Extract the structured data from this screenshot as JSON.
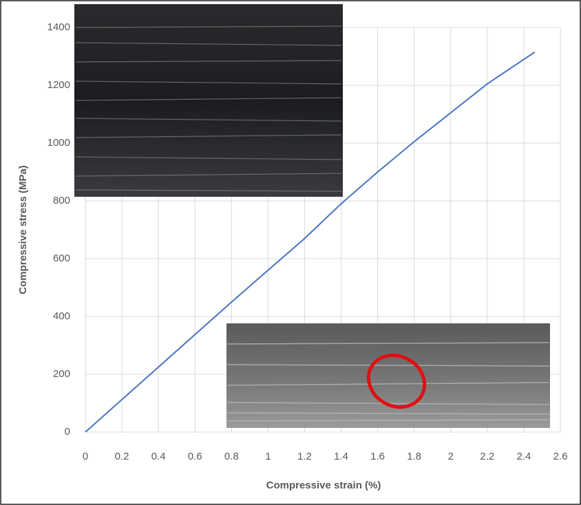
{
  "chart_data": {
    "type": "line",
    "x_label": "Compressive strain (%)",
    "y_label": "Compressive stress (MPa)",
    "x": [
      0,
      0.4,
      0.8,
      1.2,
      1.4,
      1.6,
      1.8,
      2.0,
      2.2,
      2.46
    ],
    "values": [
      0,
      225,
      450,
      670,
      790,
      900,
      1005,
      1105,
      1205,
      1315
    ],
    "color": "#4472c4",
    "xlim": [
      0,
      2.6
    ],
    "xticks": [
      0,
      0.2,
      0.4,
      0.6,
      0.8,
      1,
      1.2,
      1.4,
      1.6,
      1.8,
      2,
      2.2,
      2.4,
      2.6
    ],
    "ylim": [
      0,
      1400
    ],
    "yticks": [
      0,
      200,
      400,
      600,
      800,
      1000,
      1200,
      1400
    ],
    "grid": true
  }
}
